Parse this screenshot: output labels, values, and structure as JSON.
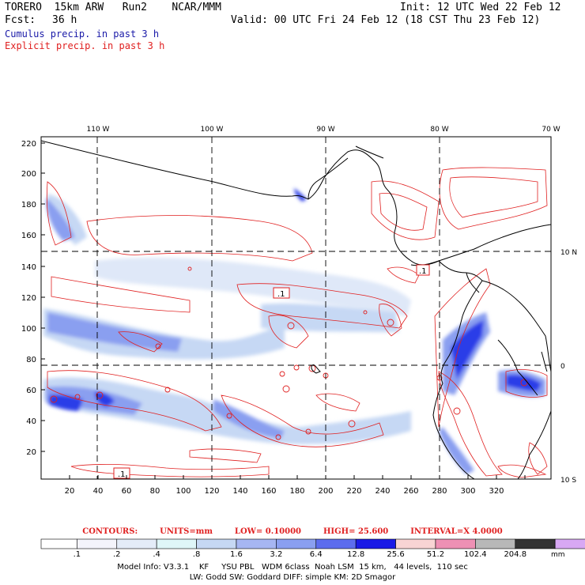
{
  "header": {
    "model": "TORERO  15km ARW   Run2    NCAR/MMM",
    "init": "Init: 12 UTC Wed 22 Feb 12",
    "fcst_label": "Fcst:",
    "fcst_value": "36 h",
    "valid": "Valid: 00 UTC Fri 24 Feb 12 (18 CST Thu 23 Feb 12)",
    "line_cumulus": "Cumulus precip. in past 3 h",
    "line_explicit": "Explicit precip. in past 3 h"
  },
  "map": {
    "lon_labels": [
      "110 W",
      "100 W",
      "90 W",
      "80 W",
      "70 W"
    ],
    "lat_labels": [
      "10 N",
      "0",
      "10 S"
    ],
    "y_ticks": [
      "220",
      "200",
      "180",
      "160",
      "140",
      "120",
      "100",
      "80",
      "60",
      "40",
      "20"
    ],
    "x_ticks": [
      "20",
      "40",
      "60",
      "80",
      "100",
      "120",
      "140",
      "160",
      "180",
      "200",
      "220",
      "240",
      "260",
      "280",
      "300",
      "320"
    ],
    "contour_labels": [
      ".1",
      ".1",
      ".1"
    ],
    "colors": {
      "cumulus_light": "#c6d8f4",
      "cumulus_mid": "#8a9ff0",
      "cumulus_dark": "#2b3de8",
      "explicit": "#e02020",
      "coast": "#000000"
    }
  },
  "contour_info": {
    "contours": "CONTOURS:",
    "units": "UNITS=mm",
    "low": "LOW=  0.10000",
    "high": "HIGH=   25.600",
    "interval": "INTERVAL=X  4.0000"
  },
  "colorbar": {
    "labels": [
      ".1",
      ".2",
      ".4",
      ".8",
      "1.6",
      "3.2",
      "6.4",
      "12.8",
      "25.6",
      "51.2",
      "102.4",
      "204.8"
    ],
    "unit": "mm",
    "colors": [
      "#ffffff",
      "#f4f4fb",
      "#e4ecf8",
      "#dff6f8",
      "#c6d8f4",
      "#a6b6f2",
      "#8a9ff0",
      "#5c6cee",
      "#1a1ae6",
      "#f8d4d4",
      "#ee90b4",
      "#b8b8b8",
      "#333333",
      "#d8a8f4"
    ]
  },
  "footer": {
    "line1": "Model Info: V3.3.1    KF     YSU PBL   WDM 6class  Noah LSM  15 km,   44 levels,  110 sec",
    "line2": "LW: Godd SW: Goddard DIFF: simple KM: 2D Smagor"
  }
}
